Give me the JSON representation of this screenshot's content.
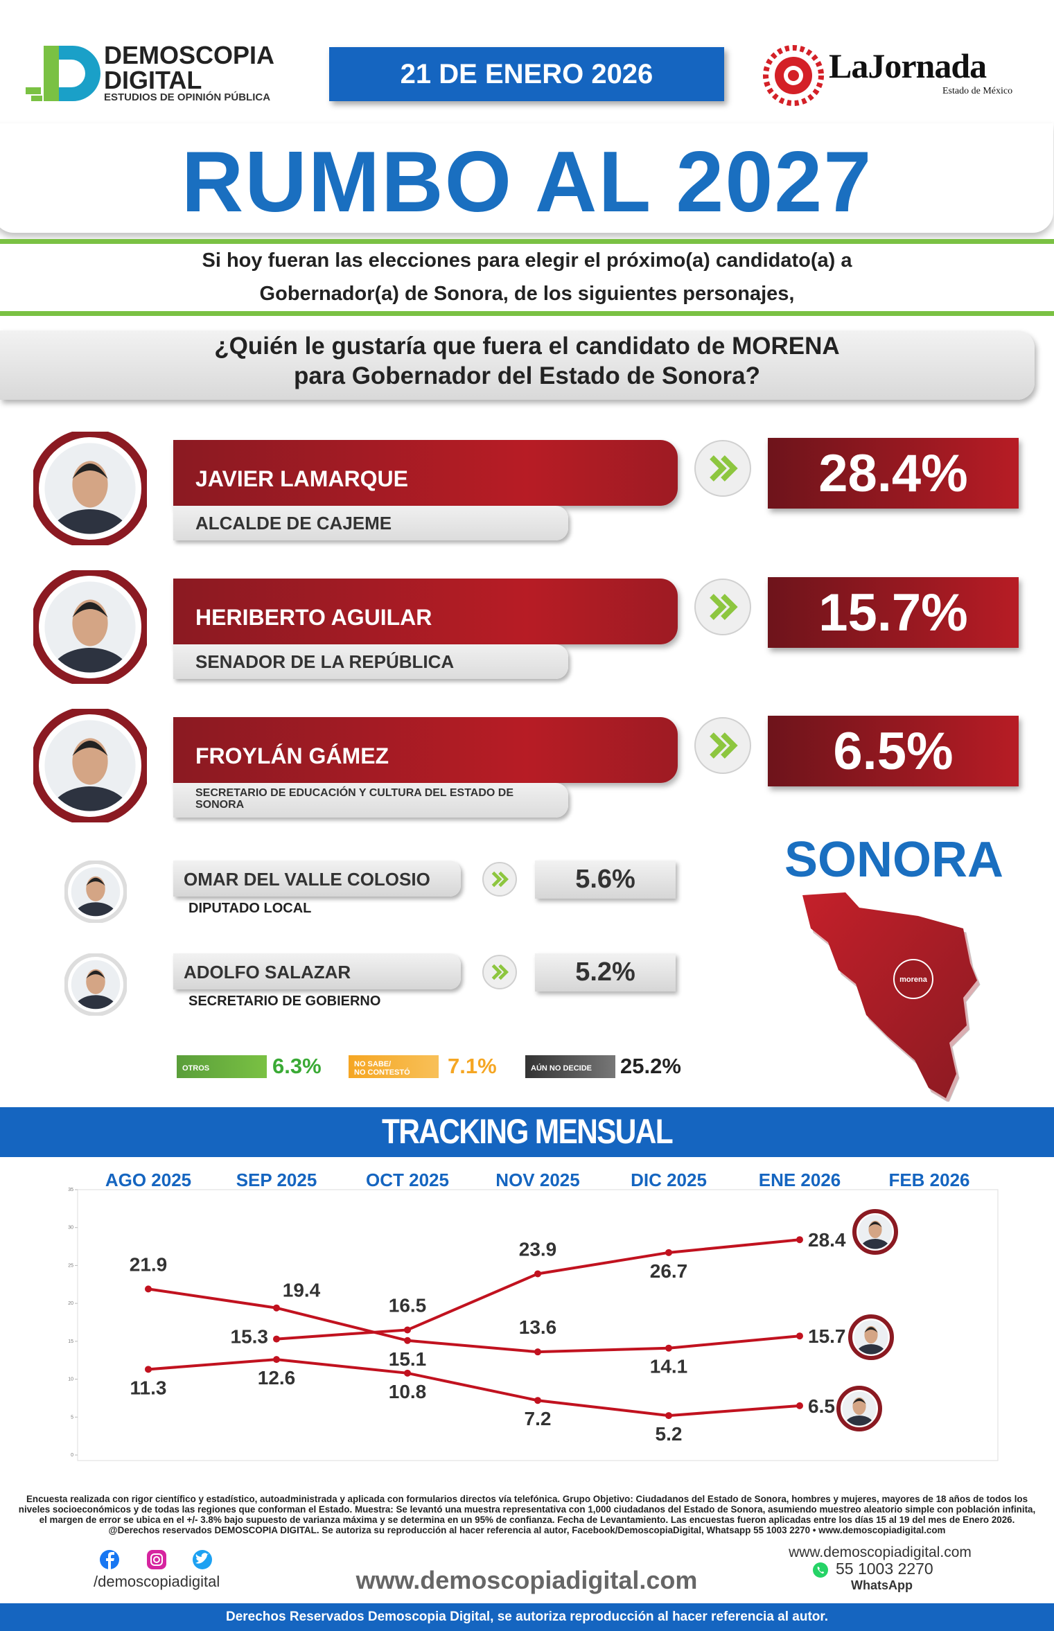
{
  "header": {
    "brand": [
      "DEMOSCOPIA",
      "DIGITAL"
    ],
    "tagline": "ESTUDIOS DE OPINIÓN PÚBLICA",
    "date": "21 DE ENERO 2026",
    "partner": "LaJornada",
    "partner_sub": "Estado de México"
  },
  "title": "RUMBO AL 2027",
  "intro": [
    "Si hoy fueran las elecciones para elegir el próximo(a) candidato(a) a",
    "Gobernador(a) de Sonora, de los siguientes personajes,"
  ],
  "question": [
    "¿Quién le gustaría que fuera el candidato de MORENA",
    "para Gobernador del Estado de Sonora?"
  ],
  "candidates": [
    {
      "name": "JAVIER LAMARQUE",
      "role": "ALCALDE DE CAJEME",
      "result": "28.4%"
    },
    {
      "name": "HERIBERTO AGUILAR",
      "role": "SENADOR DE LA REPÚBLICA",
      "result": "15.7%"
    },
    {
      "name": "FROYLÁN GÁMEZ",
      "role": "SECRETARIO DE EDUCACIÓN Y CULTURA DEL ESTADO DE SONORA",
      "result": "6.5%"
    },
    {
      "name": "OMAR DEL VALLE COLOSIO",
      "role": "DIPUTADO LOCAL",
      "result": "5.6%"
    },
    {
      "name": "ADOLFO SALAZAR",
      "role": "SECRETARIO DE GOBIERNO",
      "result": "5.2%"
    }
  ],
  "others": [
    {
      "label": [
        "OTROS"
      ],
      "result": "6.3%"
    },
    {
      "label": [
        "NO SABE/",
        "NO CONTESTÓ"
      ],
      "result": "7.1%"
    },
    {
      "label": [
        "AÚN NO DECIDE"
      ],
      "result": "25.2%"
    }
  ],
  "map": {
    "title": "SONORA",
    "badge": "morena"
  },
  "tracking_title": "TRACKING MENSUAL",
  "chart_data": {
    "type": "line",
    "categories": [
      "AGO 2025",
      "SEP 2025",
      "OCT 2025",
      "NOV 2025",
      "DIC 2025",
      "ENE 2026",
      "FEB 2026"
    ],
    "series": [
      {
        "color": "#c1121f",
        "values": [
          null,
          15.3,
          16.5,
          23.9,
          26.7,
          28.4,
          null
        ]
      },
      {
        "color": "#c1121f",
        "values": [
          21.9,
          19.4,
          15.1,
          13.6,
          14.1,
          15.7,
          null
        ]
      },
      {
        "color": "#c1121f",
        "values": [
          11.3,
          12.6,
          10.8,
          7.2,
          5.2,
          6.5,
          null
        ]
      }
    ],
    "ylim": [
      0,
      35
    ],
    "yticks": [
      0,
      5,
      10,
      15,
      20,
      25,
      30,
      35
    ],
    "grid": false
  },
  "footer": {
    "disclaimer": "Encuesta realizada con rigor científico y estadístico, autoadministrada y aplicada con formularios directos vía telefónica. Grupo Objetivo: Ciudadanos del Estado de Sonora, hombres y mujeres, mayores de 18 años de todos los niveles socioeconómicos y de todas las regiones que conforman el Estado. Muestra: Se levantó una muestra representativa con 1,000 ciudadanos del Estado de Sonora, asumiendo muestreo aleatorio simple con población infinita, el margen de error se ubica en el +/- 3.8% bajo supuesto de varianza máxima y se determina en un 95% de confianza. Fecha de Levantamiento. Las encuestas fueron aplicadas entre los días 15 al 19 del mes de Enero 2026. @Derechos reservados DEMOSCOPIA DIGITAL. Se autoriza su reproducción al hacer referencia al autor, Facebook/DemoscopiaDigital, Whatsapp 55 1003 2270 • www.demoscopiadigital.com",
    "social": "/demoscopiadigital",
    "website": "www.demoscopiadigital.com",
    "contact_web": "www.demoscopiadigital.com",
    "phone": "55 1003 2270",
    "phone_label": "WhatsApp",
    "rights": "Derechos Reservados Demoscopia Digital, se autoriza reproducción al hacer referencia al autor."
  }
}
